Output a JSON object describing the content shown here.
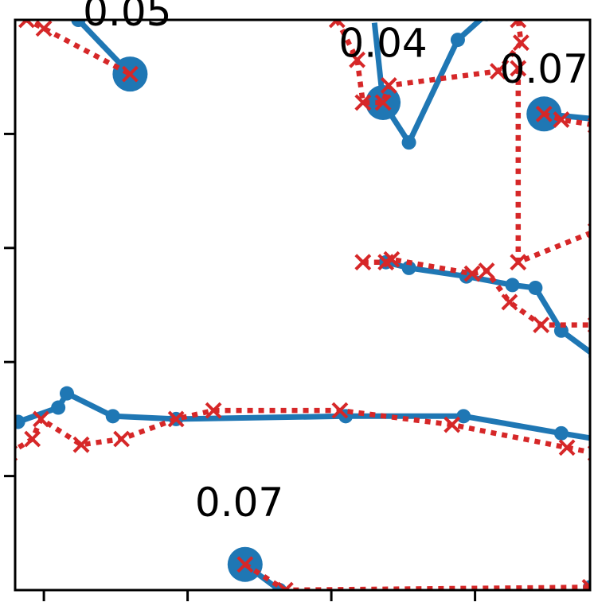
{
  "chart_data": {
    "type": "line",
    "title": "",
    "xlabel": "",
    "ylabel": "",
    "xlim": [
      0,
      100
    ],
    "ylim": [
      0,
      100
    ],
    "x_tick_positions": [
      5,
      30,
      55,
      80
    ],
    "y_tick_positions": [
      20,
      40,
      60,
      80
    ],
    "tick_labels_visible": false,
    "grid": false,
    "legend": "none",
    "colors": {
      "solid": "#1f77b4",
      "dotted": "#d62728",
      "axis": "#000000",
      "text": "#000000"
    },
    "series": [
      {
        "style": "solid-circle",
        "segments": [
          [
            [
              9,
              103
            ],
            [
              11,
              100
            ],
            [
              20,
              90.5
            ]
          ],
          [
            [
              62.5,
              99.5
            ],
            [
              64,
              85.5
            ],
            [
              68.5,
              78.5
            ]
          ],
          [
            [
              68.5,
              78.5
            ],
            [
              77,
              96.5
            ],
            [
              82,
              101
            ]
          ],
          [
            [
              92,
              83.5
            ],
            [
              102,
              82.5
            ]
          ],
          [
            [
              64.5,
              57.5
            ],
            [
              68.5,
              56.5
            ],
            [
              78.5,
              55
            ],
            [
              86.5,
              53.5
            ],
            [
              90.5,
              53
            ],
            [
              95,
              45.5
            ],
            [
              101,
              41
            ]
          ],
          [
            [
              -1,
              29
            ],
            [
              0.5,
              29.5
            ],
            [
              7.5,
              32
            ],
            [
              9,
              34.5
            ],
            [
              17,
              30.5
            ],
            [
              28,
              30
            ],
            [
              57.5,
              30.5
            ],
            [
              78,
              30.5
            ],
            [
              95,
              27.5
            ],
            [
              101,
              26.5
            ]
          ],
          [
            [
              40,
              4.5
            ],
            [
              46,
              0
            ]
          ],
          [
            [
              100,
              0.5
            ],
            [
              101,
              0.5
            ]
          ]
        ],
        "big_markers": [
          [
            20,
            90.5
          ],
          [
            64,
            85.5
          ],
          [
            92,
            83.5
          ],
          [
            40,
            4.5
          ]
        ],
        "hidden_points": [
          [
            62.5,
            99.5
          ]
        ]
      },
      {
        "style": "dotted-x",
        "segments": [
          [
            [
              -1,
              103
            ],
            [
              2,
              100
            ],
            [
              5,
              98.5
            ],
            [
              20,
              90.5
            ]
          ],
          [
            [
              56,
              100
            ],
            [
              59.5,
              93
            ],
            [
              60.5,
              85.5
            ],
            [
              64,
              85.5
            ],
            [
              65,
              88.5
            ],
            [
              84,
              91
            ],
            [
              88,
              96
            ],
            [
              87.5,
              100
            ]
          ],
          [
            [
              87.5,
              91.5
            ],
            [
              87.5,
              57.5
            ],
            [
              101,
              63
            ]
          ],
          [
            [
              92,
              83.5
            ],
            [
              95,
              82.5
            ],
            [
              101,
              81.5
            ]
          ],
          [
            [
              60.5,
              57.5
            ],
            [
              64.5,
              57.5
            ],
            [
              65.5,
              58
            ],
            [
              79.5,
              55.5
            ],
            [
              82,
              56
            ],
            [
              86,
              50.5
            ],
            [
              91.5,
              46.5
            ],
            [
              101,
              46.5
            ]
          ],
          [
            [
              -1,
              24
            ],
            [
              3,
              26.5
            ],
            [
              4.5,
              30
            ],
            [
              11.5,
              25.5
            ],
            [
              18.5,
              26.5
            ],
            [
              28,
              30
            ],
            [
              34.5,
              31.5
            ],
            [
              56.5,
              31.5
            ],
            [
              76,
              29
            ],
            [
              96,
              25
            ],
            [
              101,
              24
            ]
          ],
          [
            [
              40,
              4.5
            ],
            [
              47,
              0
            ],
            [
              100,
              0.5
            ]
          ]
        ],
        "big_markers": [
          [
            20,
            90.5
          ],
          [
            64,
            85.5
          ],
          [
            92,
            83.5
          ],
          [
            40,
            4.5
          ]
        ]
      }
    ],
    "annotations": [
      {
        "text": "0.05",
        "x": 19.5,
        "y": 99
      },
      {
        "text": "0.04",
        "x": 64,
        "y": 93.5
      },
      {
        "text": "0.07",
        "x": 92,
        "y": 89
      },
      {
        "text": "0.07",
        "x": 39,
        "y": 13
      }
    ]
  }
}
